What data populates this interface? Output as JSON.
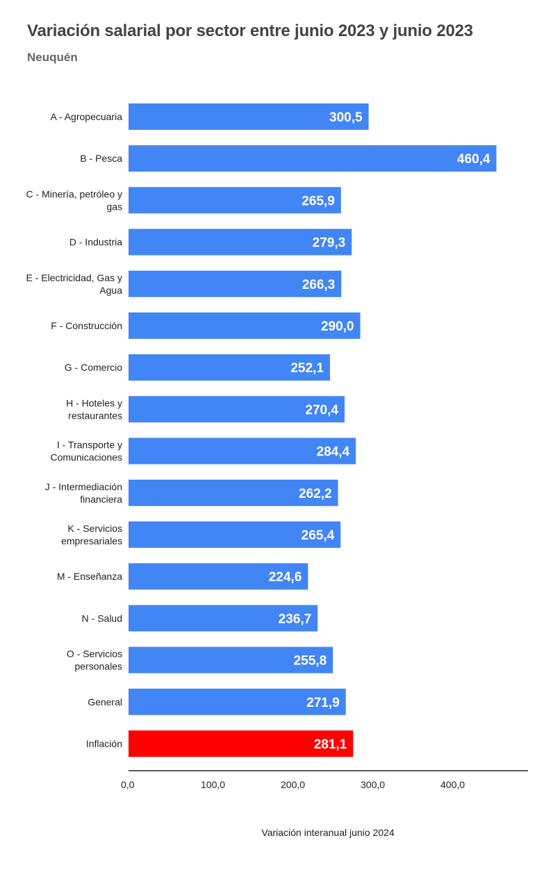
{
  "chart_data": {
    "type": "bar",
    "orientation": "horizontal",
    "title": "Variación salarial por sector entre junio 2023 y junio 2023",
    "subtitle": "Neuquén",
    "xlabel": "Variación interanual junio 2024",
    "ylabel": "",
    "xlim": [
      0,
      500
    ],
    "xticks": [
      "0,0",
      "100,0",
      "200,0",
      "300,0",
      "400,0"
    ],
    "grid": false,
    "categories": [
      "A - Agropecuaria",
      "B - Pesca",
      "C - Minería, petróleo y gas",
      "D - Industria",
      "E - Electricidad, Gas y Agua",
      "F - Construcción",
      "G - Comercio",
      "H - Hoteles y restaurantes",
      "I - Transporte y Comunicaciones",
      "J - Intermediación financiera",
      "K - Servicios empresariales",
      "M - Enseñanza",
      "N - Salud",
      "O - Servicios personales",
      "General",
      "Inflación"
    ],
    "values": [
      300.5,
      460.4,
      265.9,
      279.3,
      266.3,
      290.0,
      252.1,
      270.4,
      284.4,
      262.2,
      265.4,
      224.6,
      236.7,
      255.8,
      271.9,
      281.1
    ],
    "data_labels": [
      "300,5",
      "460,4",
      "265,9",
      "279,3",
      "266,3",
      "290,0",
      "252,1",
      "270,4",
      "284,4",
      "262,2",
      "265,4",
      "224,6",
      "236,7",
      "255,8",
      "271,9",
      "281,1"
    ],
    "colors": {
      "default": "#4285f4",
      "Inflación": "#ff0000"
    }
  }
}
